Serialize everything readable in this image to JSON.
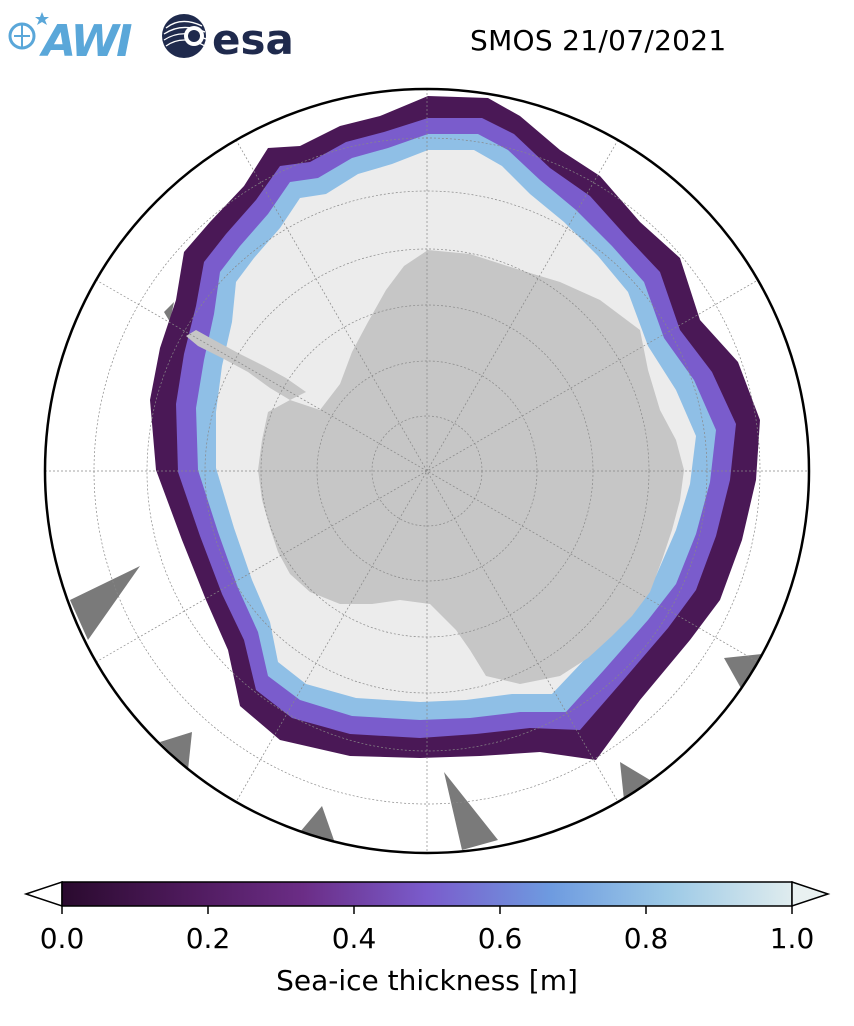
{
  "title": "SMOS 21/07/2021",
  "logos": {
    "awi_text": "AWI",
    "esa_text": "esa"
  },
  "colors": {
    "awi_blue": "#5aa7d9",
    "esa_navy": "#1f2a4d",
    "land": "#c6c6c6",
    "ocean_open": "#ffffff",
    "no_data": "#7a7a7a",
    "thick_ice": "#ececec",
    "thin_ice": "#3a1040"
  },
  "colorbar": {
    "label": "Sea-ice thickness [m]",
    "ticks": [
      "0.0",
      "0.2",
      "0.4",
      "0.6",
      "0.8",
      "1.0"
    ],
    "min": 0.0,
    "max": 1.0,
    "extend": "both",
    "colormap_stops": [
      "#2a0a2e",
      "#4e1a5c",
      "#6b2d86",
      "#7a5ccc",
      "#6e9be0",
      "#9cc9e6",
      "#dfecee"
    ]
  },
  "map": {
    "projection": "south-polar-stereographic",
    "latitude_circles": [
      "-80",
      "-70",
      "-60",
      "-50"
    ],
    "meridians_deg": [
      0,
      30,
      60,
      90,
      120,
      150,
      180,
      210,
      240,
      270,
      300,
      330
    ]
  }
}
